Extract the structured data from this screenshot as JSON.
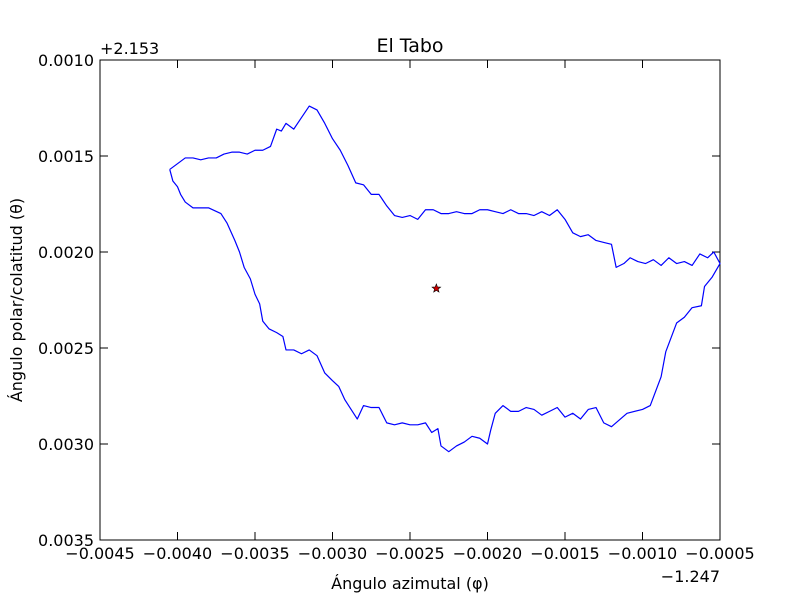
{
  "chart_data": {
    "type": "line",
    "title": "El Tabo",
    "xlabel": "Ángulo azimutal (φ)",
    "ylabel": "Ángulo polar/colatitud (θ)",
    "x_offset_label": "−1.247",
    "y_offset_label": "+2.153",
    "xlim": [
      -0.0045,
      -0.0005
    ],
    "ylim": [
      0.0035,
      0.001
    ],
    "y_inverted": true,
    "grid": false,
    "x_ticks": [
      -0.0045,
      -0.004,
      -0.0035,
      -0.003,
      -0.0025,
      -0.002,
      -0.0015,
      -0.001,
      -0.0005
    ],
    "x_tick_labels": [
      "−0.0045",
      "−0.0040",
      "−0.0035",
      "−0.0030",
      "−0.0025",
      "−0.0020",
      "−0.0015",
      "−0.0010",
      "−0.0005"
    ],
    "y_ticks": [
      0.001,
      0.0015,
      0.002,
      0.0025,
      0.003,
      0.0035
    ],
    "y_tick_labels": [
      "0.0010",
      "0.0015",
      "0.0020",
      "0.0025",
      "0.0030",
      "0.0035"
    ],
    "series": [
      {
        "kind": "boundary",
        "color": "#0000ff",
        "points": [
          [
            -0.00405,
            0.00157
          ],
          [
            -0.004,
            0.00154
          ],
          [
            -0.00395,
            0.00151
          ],
          [
            -0.0039,
            0.00151
          ],
          [
            -0.00385,
            0.00152
          ],
          [
            -0.0038,
            0.00151
          ],
          [
            -0.00375,
            0.00151
          ],
          [
            -0.0037,
            0.00149
          ],
          [
            -0.00365,
            0.00148
          ],
          [
            -0.0036,
            0.00148
          ],
          [
            -0.00355,
            0.00149
          ],
          [
            -0.0035,
            0.00147
          ],
          [
            -0.00345,
            0.00147
          ],
          [
            -0.0034,
            0.00145
          ],
          [
            -0.00336,
            0.00136
          ],
          [
            -0.00333,
            0.00137
          ],
          [
            -0.0033,
            0.00133
          ],
          [
            -0.00325,
            0.00136
          ],
          [
            -0.0032,
            0.0013
          ],
          [
            -0.00315,
            0.00124
          ],
          [
            -0.0031,
            0.00126
          ],
          [
            -0.00305,
            0.00133
          ],
          [
            -0.003,
            0.00141
          ],
          [
            -0.00295,
            0.00147
          ],
          [
            -0.0029,
            0.00155
          ],
          [
            -0.00285,
            0.00164
          ],
          [
            -0.0028,
            0.00165
          ],
          [
            -0.00275,
            0.0017
          ],
          [
            -0.0027,
            0.0017
          ],
          [
            -0.00265,
            0.00176
          ],
          [
            -0.0026,
            0.00181
          ],
          [
            -0.00255,
            0.00182
          ],
          [
            -0.0025,
            0.00181
          ],
          [
            -0.00245,
            0.00183
          ],
          [
            -0.0024,
            0.00178
          ],
          [
            -0.00235,
            0.00178
          ],
          [
            -0.0023,
            0.0018
          ],
          [
            -0.00225,
            0.0018
          ],
          [
            -0.0022,
            0.00179
          ],
          [
            -0.00215,
            0.0018
          ],
          [
            -0.0021,
            0.0018
          ],
          [
            -0.00205,
            0.00178
          ],
          [
            -0.002,
            0.00178
          ],
          [
            -0.00195,
            0.00179
          ],
          [
            -0.0019,
            0.0018
          ],
          [
            -0.00185,
            0.00178
          ],
          [
            -0.0018,
            0.0018
          ],
          [
            -0.00175,
            0.0018
          ],
          [
            -0.0017,
            0.00181
          ],
          [
            -0.00165,
            0.00179
          ],
          [
            -0.0016,
            0.00181
          ],
          [
            -0.00155,
            0.00178
          ],
          [
            -0.0015,
            0.00183
          ],
          [
            -0.00145,
            0.0019
          ],
          [
            -0.0014,
            0.00192
          ],
          [
            -0.00135,
            0.00191
          ],
          [
            -0.0013,
            0.00194
          ],
          [
            -0.00125,
            0.00195
          ],
          [
            -0.0012,
            0.00196
          ],
          [
            -0.00117,
            0.00208
          ],
          [
            -0.00112,
            0.00206
          ],
          [
            -0.00108,
            0.00203
          ],
          [
            -0.00103,
            0.00205
          ],
          [
            -0.00098,
            0.00206
          ],
          [
            -0.00093,
            0.00204
          ],
          [
            -0.00088,
            0.00207
          ],
          [
            -0.00083,
            0.00203
          ],
          [
            -0.00078,
            0.00206
          ],
          [
            -0.00073,
            0.00205
          ],
          [
            -0.00068,
            0.00207
          ],
          [
            -0.00063,
            0.00201
          ],
          [
            -0.00058,
            0.00203
          ],
          [
            -0.00054,
            0.002
          ],
          [
            -0.0005,
            0.00206
          ],
          [
            -0.00055,
            0.00213
          ],
          [
            -0.0006,
            0.00218
          ],
          [
            -0.00062,
            0.00228
          ],
          [
            -0.00068,
            0.00229
          ],
          [
            -0.00073,
            0.00234
          ],
          [
            -0.00078,
            0.00237
          ],
          [
            -0.00085,
            0.00252
          ],
          [
            -0.00088,
            0.00265
          ],
          [
            -0.00095,
            0.0028
          ],
          [
            -0.001,
            0.00282
          ],
          [
            -0.0011,
            0.00284
          ],
          [
            -0.0012,
            0.00291
          ],
          [
            -0.00125,
            0.00289
          ],
          [
            -0.0013,
            0.00281
          ],
          [
            -0.00135,
            0.00282
          ],
          [
            -0.0014,
            0.00287
          ],
          [
            -0.00145,
            0.00284
          ],
          [
            -0.0015,
            0.00286
          ],
          [
            -0.00155,
            0.00281
          ],
          [
            -0.0016,
            0.00283
          ],
          [
            -0.00165,
            0.00285
          ],
          [
            -0.0017,
            0.00282
          ],
          [
            -0.00175,
            0.00281
          ],
          [
            -0.0018,
            0.00283
          ],
          [
            -0.00185,
            0.00283
          ],
          [
            -0.0019,
            0.0028
          ],
          [
            -0.00195,
            0.00284
          ],
          [
            -0.00198,
            0.00293
          ],
          [
            -0.002,
            0.003
          ],
          [
            -0.00205,
            0.00297
          ],
          [
            -0.0021,
            0.00296
          ],
          [
            -0.00215,
            0.00299
          ],
          [
            -0.0022,
            0.00301
          ],
          [
            -0.00225,
            0.00304
          ],
          [
            -0.0023,
            0.00301
          ],
          [
            -0.00232,
            0.00292
          ],
          [
            -0.00236,
            0.00294
          ],
          [
            -0.0024,
            0.00289
          ],
          [
            -0.00245,
            0.0029
          ],
          [
            -0.0025,
            0.0029
          ],
          [
            -0.00255,
            0.00289
          ],
          [
            -0.0026,
            0.0029
          ],
          [
            -0.00265,
            0.00289
          ],
          [
            -0.0027,
            0.00281
          ],
          [
            -0.00275,
            0.00281
          ],
          [
            -0.0028,
            0.0028
          ],
          [
            -0.00284,
            0.00287
          ],
          [
            -0.00288,
            0.00282
          ],
          [
            -0.00292,
            0.00277
          ],
          [
            -0.00296,
            0.0027
          ],
          [
            -0.003,
            0.00267
          ],
          [
            -0.00305,
            0.00263
          ],
          [
            -0.0031,
            0.00254
          ],
          [
            -0.00315,
            0.00251
          ],
          [
            -0.0032,
            0.00253
          ],
          [
            -0.00325,
            0.00251
          ],
          [
            -0.0033,
            0.00251
          ],
          [
            -0.00332,
            0.00244
          ],
          [
            -0.00336,
            0.00242
          ],
          [
            -0.00341,
            0.0024
          ],
          [
            -0.00345,
            0.00236
          ],
          [
            -0.00347,
            0.00227
          ],
          [
            -0.0035,
            0.00222
          ],
          [
            -0.00353,
            0.00214
          ],
          [
            -0.00357,
            0.00208
          ],
          [
            -0.0036,
            0.002
          ],
          [
            -0.00363,
            0.00194
          ],
          [
            -0.00368,
            0.00185
          ],
          [
            -0.00372,
            0.0018
          ],
          [
            -0.0038,
            0.00177
          ],
          [
            -0.0039,
            0.00177
          ],
          [
            -0.00395,
            0.00174
          ],
          [
            -0.00398,
            0.0017
          ],
          [
            -0.004,
            0.00166
          ],
          [
            -0.00403,
            0.00163
          ],
          [
            -0.00405,
            0.00157
          ]
        ]
      },
      {
        "kind": "marker",
        "marker": "star",
        "color": "#cc0000",
        "points": [
          [
            -0.00233,
            0.00219
          ]
        ]
      }
    ]
  }
}
